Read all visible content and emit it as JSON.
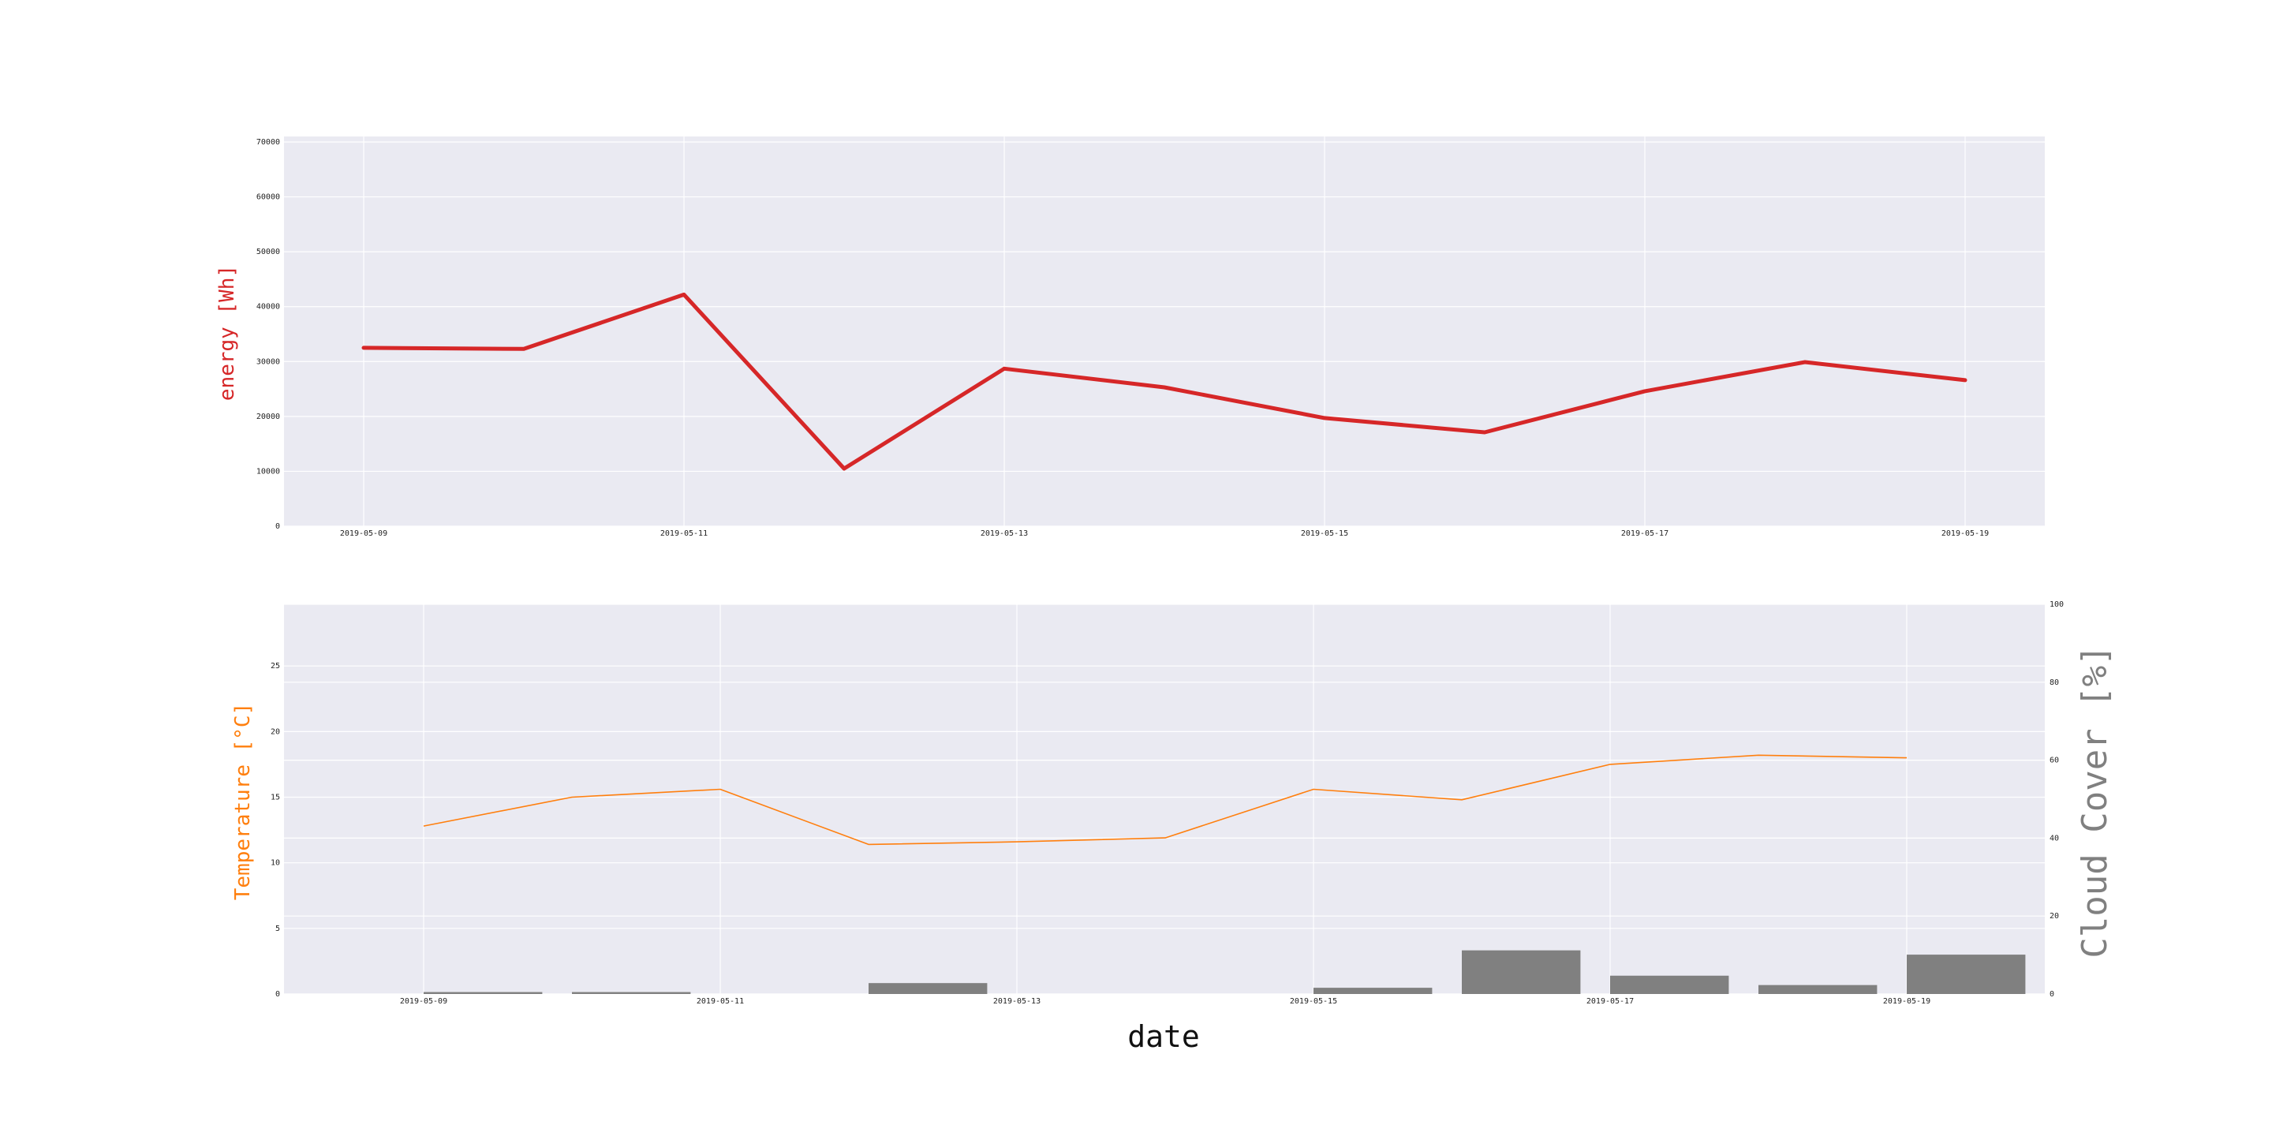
{
  "figure": {
    "xlabel": "date"
  },
  "colors": {
    "background": "#ffffff",
    "axes_face": "#eaeaf2",
    "grid": "#ffffff",
    "energy_line": "#d62728",
    "temperature_line": "#ff7f0e",
    "cloud_bars": "#808080",
    "tick_text": "#222222"
  },
  "chart_data": [
    {
      "type": "line",
      "title": "",
      "ylabel": "energy [Wh]",
      "xlabel": "",
      "ylim": [
        0,
        70000
      ],
      "xlim": [
        "2019-05-08",
        "2019-05-19"
      ],
      "grid": true,
      "xticks": [
        "2019-05-09",
        "2019-05-11",
        "2019-05-13",
        "2019-05-15",
        "2019-05-17",
        "2019-05-19"
      ],
      "yticks": [
        "0",
        "10000",
        "20000",
        "30000",
        "40000",
        "50000",
        "60000",
        "70000"
      ],
      "x": [
        "2019-05-09",
        "2019-05-10",
        "2019-05-11",
        "2019-05-12",
        "2019-05-13",
        "2019-05-14",
        "2019-05-15",
        "2019-05-16",
        "2019-05-17",
        "2019-05-18",
        "2019-05-19"
      ],
      "values": [
        32500,
        32300,
        42200,
        10500,
        28700,
        25300,
        19700,
        17100,
        24600,
        29900,
        26600
      ]
    },
    {
      "type": "line+bar",
      "title": "",
      "xlabel": "date",
      "ylabel": "Temperature [°C]",
      "y2label": "Cloud Cover [%]",
      "ylim": [
        0,
        29.7
      ],
      "y2lim": [
        0,
        100
      ],
      "grid": true,
      "xticks": [
        "2019-05-09",
        "2019-05-11",
        "2019-05-13",
        "2019-05-15",
        "2019-05-17",
        "2019-05-19"
      ],
      "yticks": [
        "0",
        "5",
        "10",
        "15",
        "20",
        "25"
      ],
      "y2ticks": [
        "0",
        "20",
        "40",
        "60",
        "80",
        "100"
      ],
      "x": [
        "2019-05-09",
        "2019-05-10",
        "2019-05-11",
        "2019-05-12",
        "2019-05-13",
        "2019-05-14",
        "2019-05-15",
        "2019-05-16",
        "2019-05-17",
        "2019-05-18",
        "2019-05-19"
      ],
      "series": [
        {
          "type": "line",
          "values": [
            12.8,
            15.0,
            15.6,
            11.4,
            11.6,
            11.9,
            15.6,
            14.8,
            17.5,
            18.2,
            18.0
          ]
        },
        {
          "type": "bar",
          "values": [
            0.5,
            0.5,
            0,
            2.8,
            0,
            0,
            1.6,
            11.2,
            4.7,
            2.3,
            10.1
          ]
        }
      ]
    }
  ]
}
